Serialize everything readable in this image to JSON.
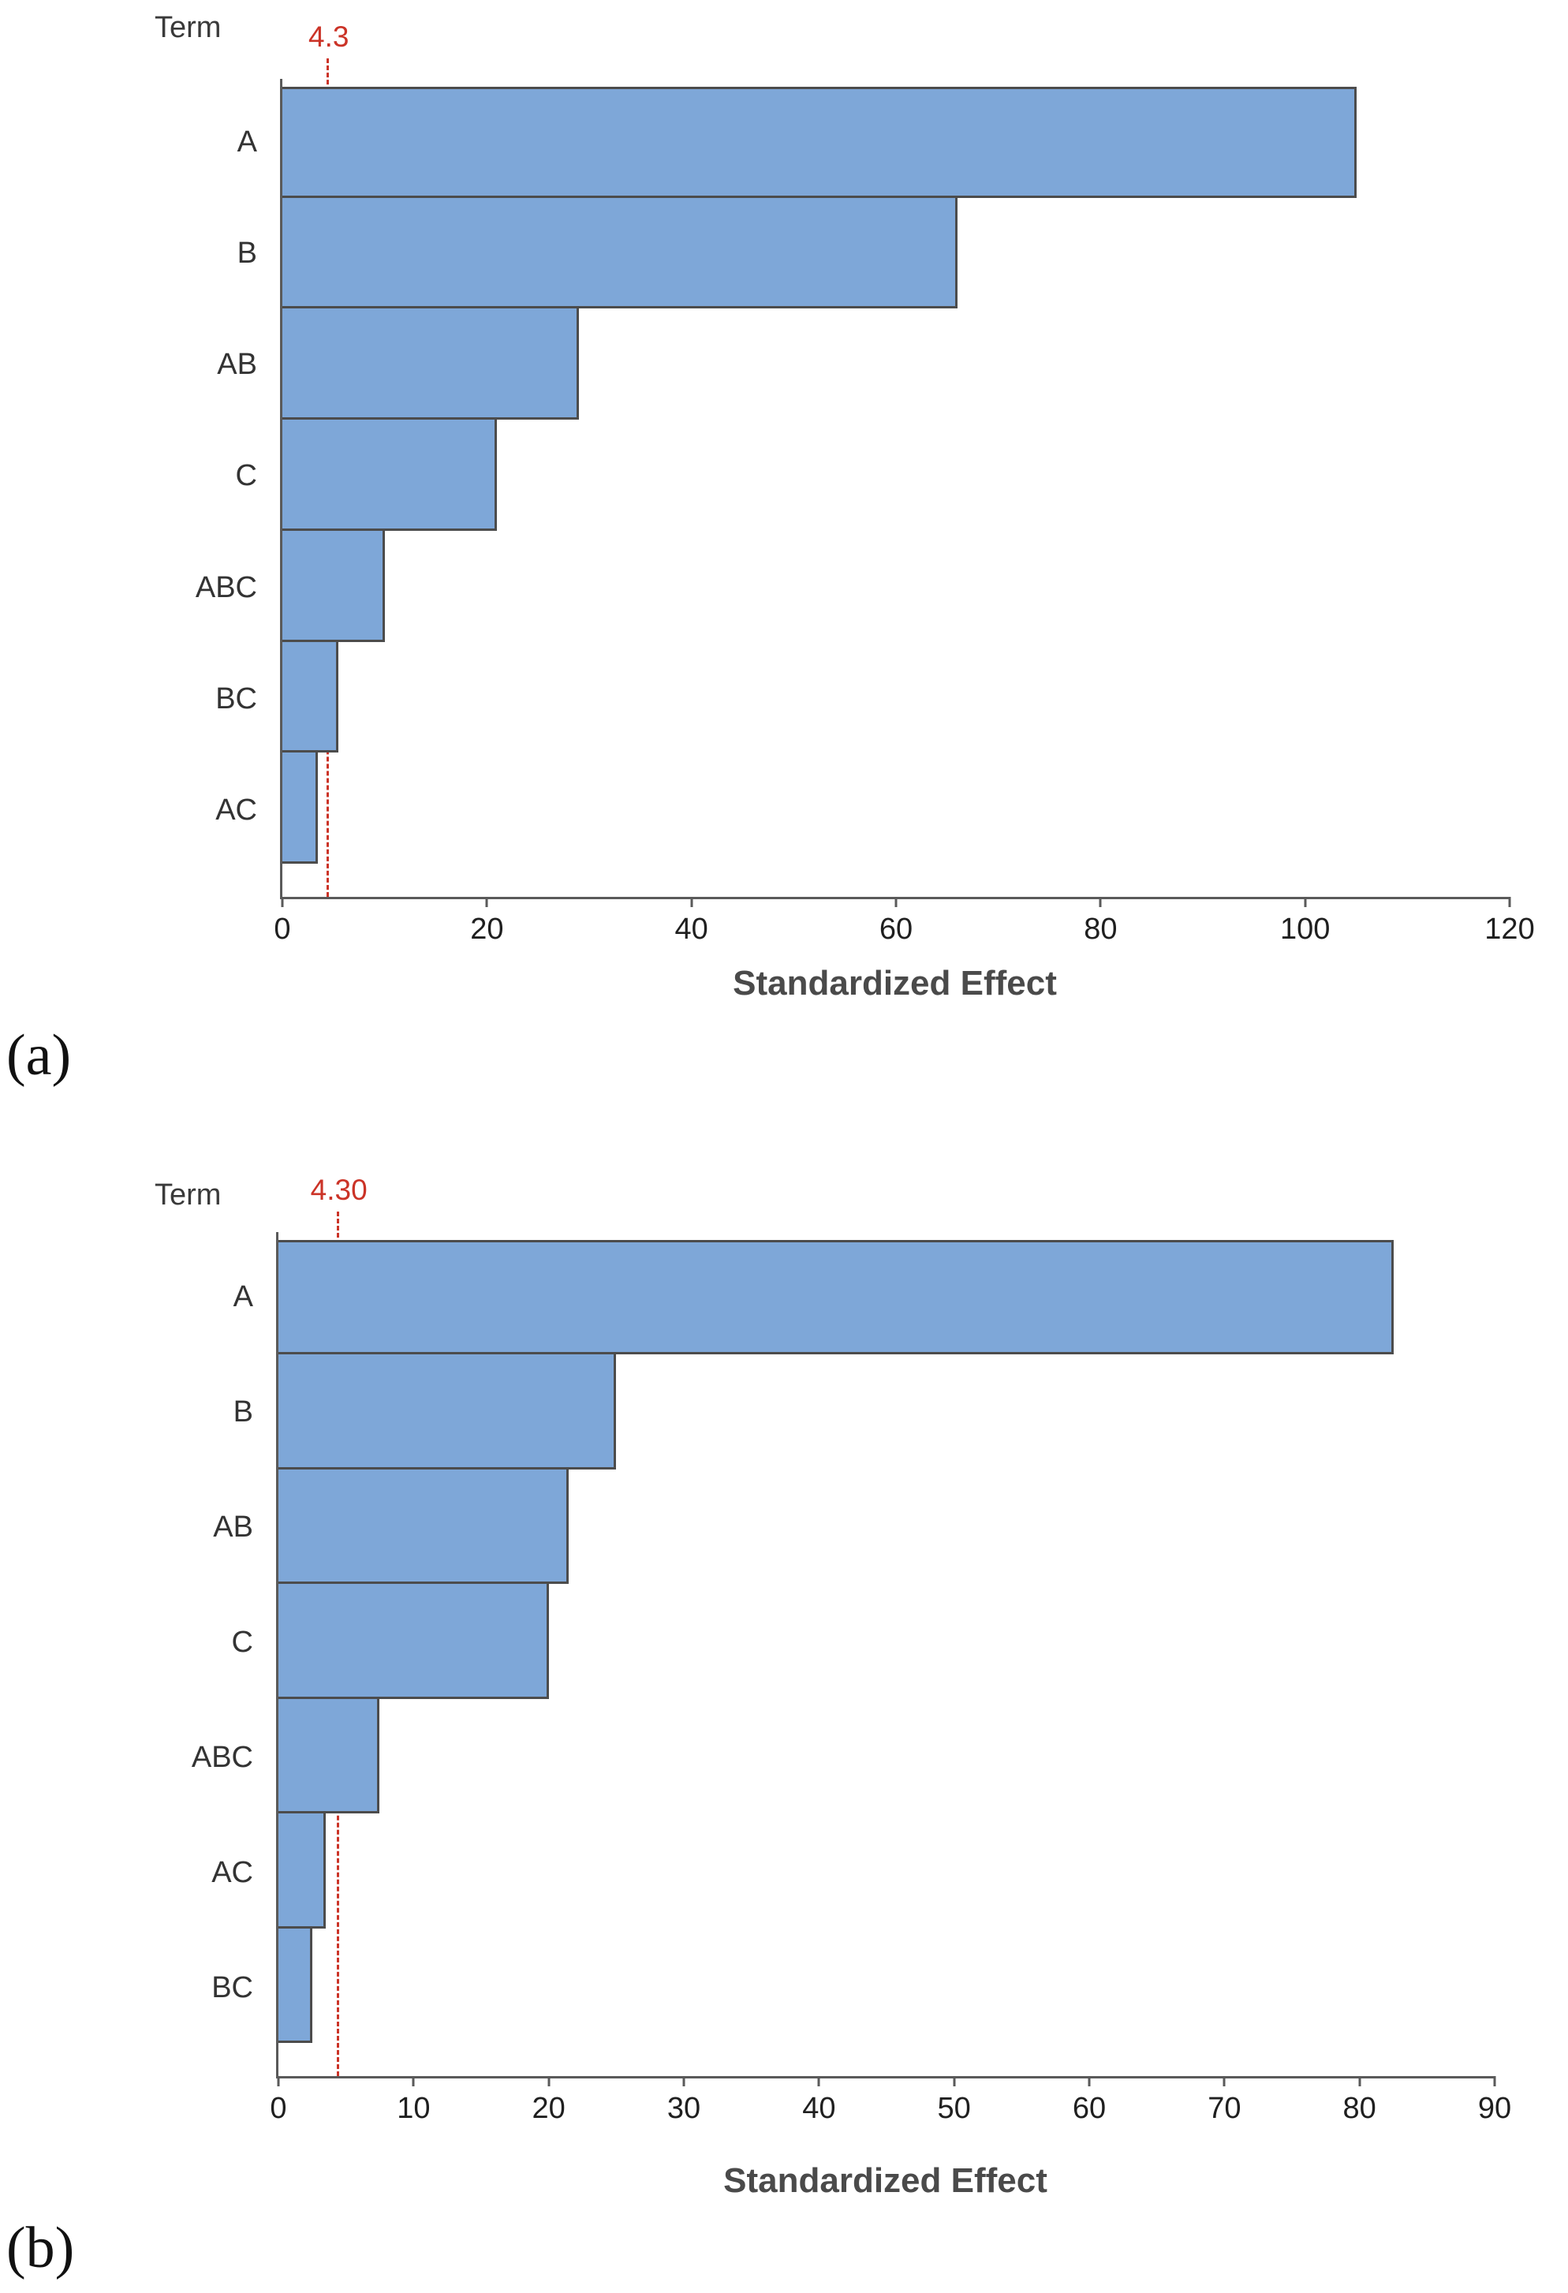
{
  "figure": {
    "panel_a_label": "(a)",
    "panel_b_label": "(b)"
  },
  "chart_data": [
    {
      "type": "bar",
      "orientation": "horizontal",
      "term_label": "Term",
      "xlabel": "Standardized Effect",
      "categories": [
        "A",
        "B",
        "AB",
        "C",
        "ABC",
        "BC",
        "AC"
      ],
      "values": [
        105,
        66,
        29,
        21,
        10,
        5.5,
        3.5
      ],
      "xlim": [
        0,
        120
      ],
      "xticks": [
        0,
        20,
        40,
        60,
        80,
        100,
        120
      ],
      "reference_line": {
        "value": 4.3,
        "label": "4.3",
        "color": "#cb3327"
      },
      "bar_color": "#7ea7d8",
      "bar_border_color": "#4c4c4c",
      "grid": false,
      "legend_position": "none"
    },
    {
      "type": "bar",
      "orientation": "horizontal",
      "term_label": "Term",
      "xlabel": "Standardized Effect",
      "categories": [
        "A",
        "B",
        "AB",
        "C",
        "ABC",
        "AC",
        "BC"
      ],
      "values": [
        82.5,
        25,
        21.5,
        20,
        7.5,
        3.5,
        2.5
      ],
      "xlim": [
        0,
        90
      ],
      "xticks": [
        0,
        10,
        20,
        30,
        40,
        50,
        60,
        70,
        80,
        90
      ],
      "reference_line": {
        "value": 4.3,
        "label": "4.30",
        "color": "#cb3327"
      },
      "bar_color": "#7ea7d8",
      "bar_border_color": "#4c4c4c",
      "grid": false,
      "legend_position": "none"
    }
  ]
}
